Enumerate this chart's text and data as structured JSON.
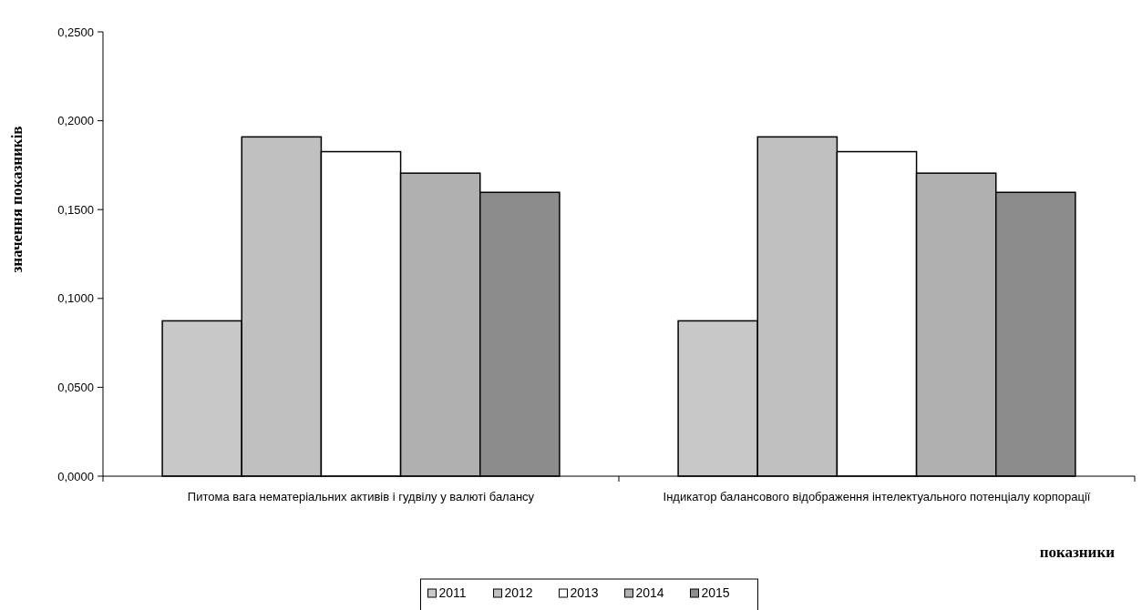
{
  "chart_data": {
    "type": "bar",
    "xlabel": "показники",
    "ylabel": "значення показників",
    "categories": [
      "Питома вага нематеріальних активів і гудвілу у валюті балансу",
      "Індикатор балансового відображення інтелектуального потенціалу корпорації"
    ],
    "series": [
      {
        "name": "2011",
        "color": "#c8c8c8",
        "values": [
          0.0874,
          0.0874
        ]
      },
      {
        "name": "2012",
        "color": "#c0c0c0",
        "values": [
          0.1909,
          0.1909
        ]
      },
      {
        "name": "2013",
        "color": "#ffffff",
        "values": [
          0.1826,
          0.1826
        ]
      },
      {
        "name": "2014",
        "color": "#b0b0b0",
        "values": [
          0.1705,
          0.1705
        ]
      },
      {
        "name": "2015",
        "color": "#8c8c8c",
        "values": [
          0.1597,
          0.1597
        ]
      }
    ],
    "ylim": [
      0,
      0.25
    ],
    "yticks": [
      {
        "value": 0,
        "label": "0,0000"
      },
      {
        "value": 0.05,
        "label": "0,0500"
      },
      {
        "value": 0.1,
        "label": "0,1000"
      },
      {
        "value": 0.15,
        "label": "0,1500"
      },
      {
        "value": 0.2,
        "label": "0,2000"
      },
      {
        "value": 0.25,
        "label": "0,2500"
      }
    ],
    "grid": false,
    "legend": "bottom"
  }
}
